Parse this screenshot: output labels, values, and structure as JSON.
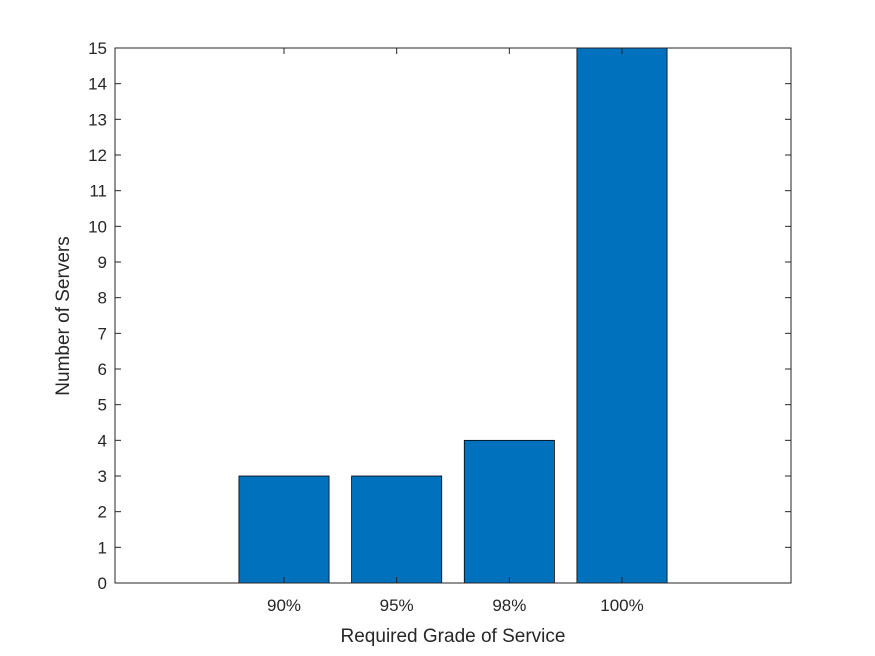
{
  "chart_data": {
    "type": "bar",
    "categories": [
      "90%",
      "95%",
      "98%",
      "100%"
    ],
    "values": [
      3,
      3,
      4,
      15
    ],
    "xlabel": "Required Grade of Service",
    "ylabel": "Number of Servers",
    "ylim": [
      0,
      15
    ],
    "yticks": [
      0,
      1,
      2,
      3,
      4,
      5,
      6,
      7,
      8,
      9,
      10,
      11,
      12,
      13,
      14,
      15
    ],
    "grid": false,
    "bar_color": "#0072BD",
    "bar_edge_color": "#000000",
    "axis_color": "#262626"
  }
}
